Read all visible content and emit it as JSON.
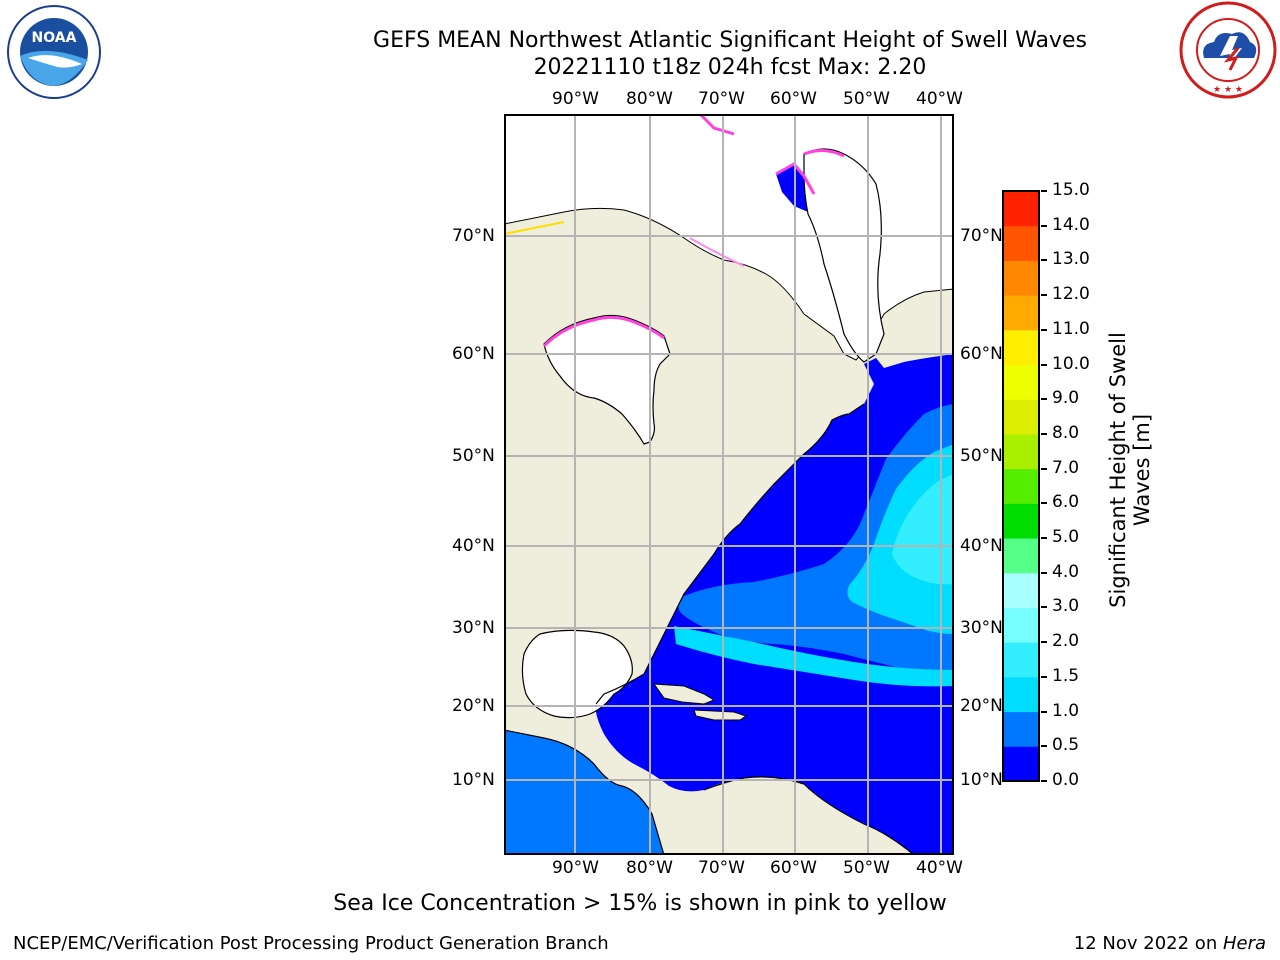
{
  "header": {
    "title_line1": "GEFS MEAN Northwest Atlantic Significant Height of Swell Waves",
    "title_line2": "20221110 t18z 024h fcst   Max: 2.20"
  },
  "logos": {
    "left": {
      "text": "NOAA",
      "ring_text": "NATIONAL OCEANIC AND ATMOSPHERIC ADMINISTRATION · U.S. DEPARTMENT OF COMMERCE"
    },
    "right": {
      "ring_text": "NATIONAL WEATHER SERVICE"
    }
  },
  "map": {
    "lon_labels": [
      "90°W",
      "80°W",
      "70°W",
      "60°W",
      "50°W",
      "40°W"
    ],
    "lat_labels": [
      "70°N",
      "60°N",
      "50°N",
      "40°N",
      "30°N",
      "20°N",
      "10°N"
    ],
    "colors": {
      "land": "#efeddc",
      "ice_free_region": "#ffffff",
      "grid": "#b4b4b4",
      "coast": "#000000"
    }
  },
  "colorbar": {
    "label": "Significant Height of Swell Waves [m]",
    "ticks": [
      "0.0",
      "0.5",
      "1.0",
      "1.5",
      "2.0",
      "3.0",
      "4.0",
      "5.0",
      "6.0",
      "7.0",
      "8.0",
      "9.0",
      "10.0",
      "11.0",
      "12.0",
      "13.0",
      "14.0",
      "15.0"
    ],
    "colors": [
      "#0000ff",
      "#0077ff",
      "#00ddff",
      "#33eeff",
      "#77ffff",
      "#aaffff",
      "#55ff88",
      "#00dd00",
      "#55ee00",
      "#aaee00",
      "#ddee00",
      "#eeff00",
      "#ffee00",
      "#ffaa00",
      "#ff8800",
      "#ff5500",
      "#ff2200"
    ]
  },
  "caption": "Sea Ice Concentration > 15% is shown in pink to yellow",
  "footer": {
    "left": "NCEP/EMC/Verification Post Processing Product Generation Branch",
    "date": "12 Nov 2022 on ",
    "host": "Hera"
  }
}
